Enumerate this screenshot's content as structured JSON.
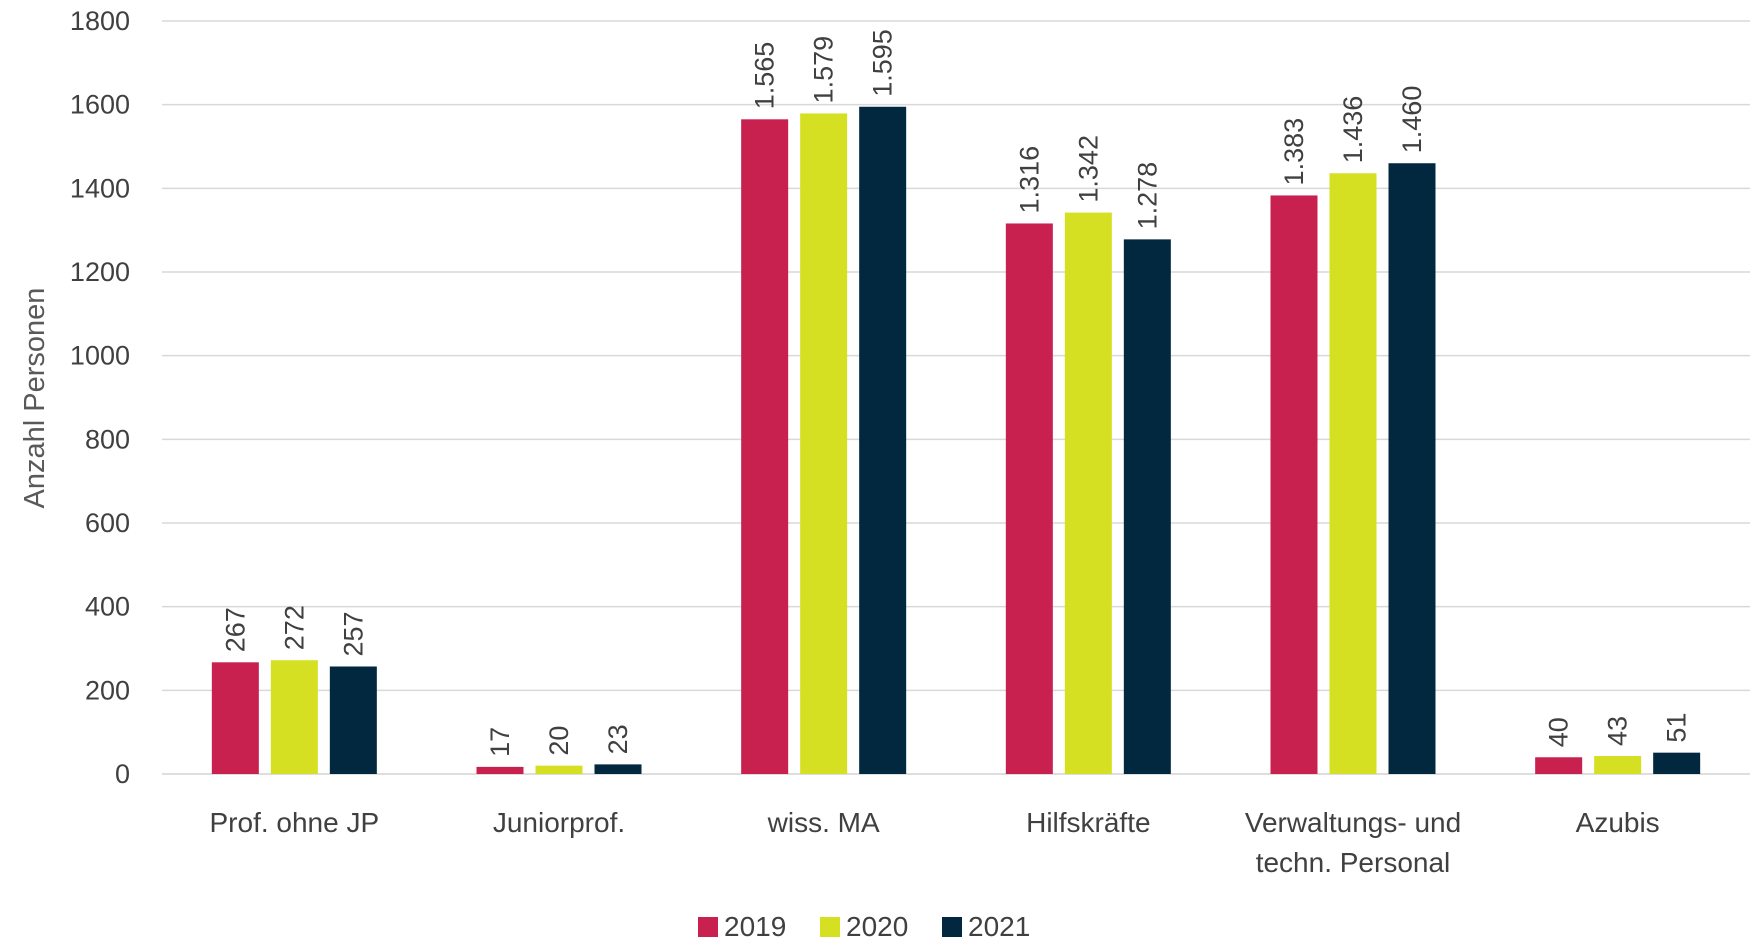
{
  "chart_data": {
    "type": "bar",
    "ylabel": "Anzahl Personen",
    "ylim": [
      0,
      1800
    ],
    "ytick_step": 200,
    "grid": true,
    "legend_position": "bottom-center",
    "categories": [
      [
        "Prof. ohne JP"
      ],
      [
        "Juniorprof."
      ],
      [
        "wiss. MA"
      ],
      [
        "Hilfskräfte"
      ],
      [
        "Verwaltungs- und",
        "techn. Personal"
      ],
      [
        "Azubis"
      ]
    ],
    "series": [
      {
        "name": "2019",
        "color": "#C8204F",
        "values": [
          267,
          17,
          1565,
          1316,
          1383,
          40
        ],
        "labels": [
          "267",
          "17",
          "1.565",
          "1.316",
          "1.383",
          "40"
        ]
      },
      {
        "name": "2020",
        "color": "#D5E022",
        "values": [
          272,
          20,
          1579,
          1342,
          1436,
          43
        ],
        "labels": [
          "272",
          "20",
          "1.579",
          "1.342",
          "1.436",
          "43"
        ]
      },
      {
        "name": "2021",
        "color": "#022840",
        "values": [
          257,
          23,
          1595,
          1278,
          1460,
          51
        ],
        "labels": [
          "257",
          "23",
          "1.595",
          "1.278",
          "1.460",
          "51"
        ]
      }
    ]
  }
}
